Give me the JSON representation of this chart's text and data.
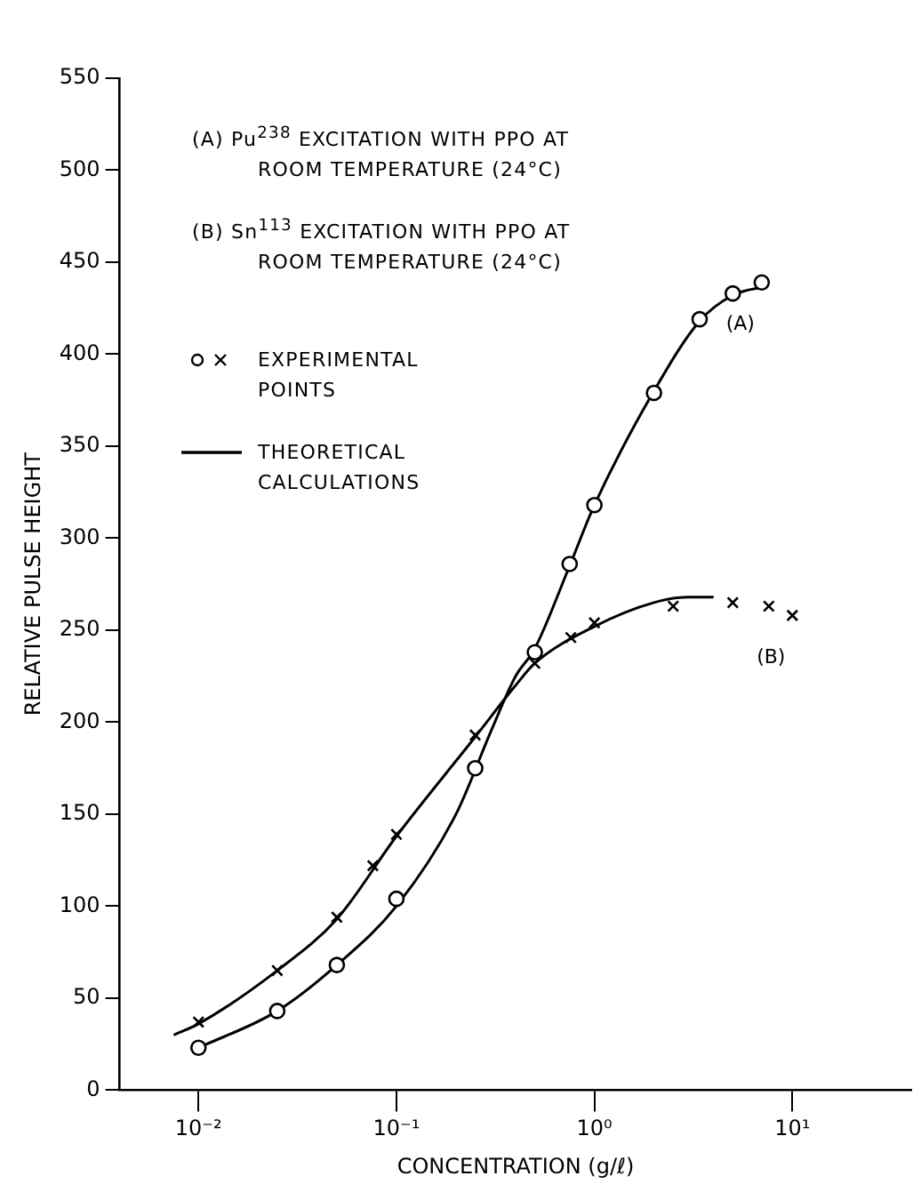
{
  "chart_data": {
    "type": "line",
    "xlabel": "CONCENTRATION (g/ℓ)",
    "ylabel": "RELATIVE PULSE HEIGHT",
    "log": "x",
    "xlim": [
      0.004,
      40
    ],
    "ylim": [
      0,
      550
    ],
    "xticks": [
      {
        "value": 0.01,
        "label": "10⁻²"
      },
      {
        "value": 0.1,
        "label": "10⁻¹"
      },
      {
        "value": 1,
        "label": "10⁰"
      },
      {
        "value": 10,
        "label": "10¹"
      }
    ],
    "yticks": [
      0,
      50,
      100,
      150,
      200,
      250,
      300,
      350,
      400,
      450,
      500,
      550
    ],
    "grid": false,
    "legend": "top left",
    "series": [
      {
        "name": "EXPERIMENTAL POINTS",
        "type": "scatter",
        "marker": "circle",
        "color": "#000000",
        "x": [
          0.01,
          0.025,
          0.05,
          0.1,
          0.25,
          0.5,
          0.75,
          1,
          2,
          3.4,
          5,
          7
        ],
        "values": [
          23,
          43,
          68,
          104,
          175,
          238,
          286,
          318,
          379,
          419,
          433,
          439
        ]
      },
      {
        "type": "scatter",
        "marker": "cross",
        "color": "#000000",
        "x": [
          0.01,
          0.025,
          0.05,
          0.076,
          0.1,
          0.25,
          0.5,
          0.76,
          1,
          2.5,
          5,
          7.6,
          10
        ],
        "values": [
          37,
          65,
          94,
          122,
          139,
          193,
          232,
          246,
          254,
          263,
          265,
          263,
          258
        ]
      },
      {
        "name": "THEORETICAL CALCULATIONS",
        "type": "line",
        "marker": "none",
        "color": "#000000",
        "x": [
          0.01,
          0.025,
          0.05,
          0.1,
          0.2,
          0.3,
          0.4,
          0.5,
          0.75,
          1,
          2,
          3.4,
          5,
          7.5
        ],
        "values": [
          23,
          43,
          68,
          100,
          150,
          195,
          225,
          240,
          285,
          318,
          380,
          418,
          432,
          437
        ]
      },
      {
        "type": "line",
        "marker": "none",
        "color": "#000000",
        "x": [
          0.0075,
          0.01,
          0.025,
          0.05,
          0.1,
          0.25,
          0.4,
          0.5,
          1,
          2,
          3,
          4
        ],
        "values": [
          30,
          36,
          65,
          93,
          138,
          192,
          220,
          232,
          252,
          265,
          268,
          268
        ]
      }
    ],
    "annotations": [
      "(A) Pu$^{238}$ EXCITATION WITH PPO AT ROOM TEMPERATURE (24°C)",
      "(B) Sn$^{113}$ EXCITATION WITH PPO AT ROOM TEMPERATURE (24°C)",
      "(A)",
      "(B)"
    ]
  }
}
